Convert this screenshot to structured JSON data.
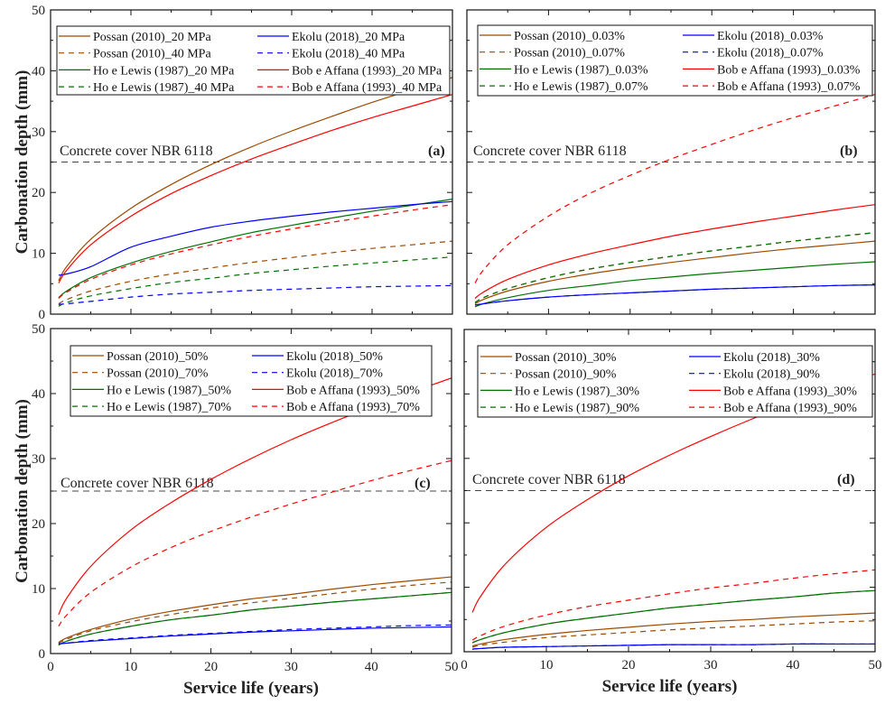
{
  "chart_data": [
    {
      "type": "line",
      "panel_label": "(a)",
      "xlabel": "",
      "ylabel": "Carbonation depth (mm)",
      "xlim": [
        0,
        50
      ],
      "ylim": [
        0,
        50
      ],
      "xticks": [
        0,
        10,
        20,
        30,
        40,
        50
      ],
      "yticks": [
        0,
        10,
        20,
        30,
        40,
        50
      ],
      "reference_line": {
        "y": 25,
        "label": "Concrete cover NBR 6118",
        "color": "#444444",
        "style": "dashed"
      },
      "legend": "top",
      "x": [
        1,
        2,
        5,
        10,
        15,
        20,
        25,
        30,
        35,
        40,
        45,
        50
      ],
      "series": [
        {
          "name": "Possan (2010)_20 MPa",
          "color": "#9c4a00",
          "style": "solid",
          "values": [
            5.5,
            7.8,
            12.3,
            17.4,
            21.3,
            24.6,
            27.5,
            30.1,
            32.5,
            34.8,
            36.9,
            38.9
          ]
        },
        {
          "name": "Possan (2010)_40 MPa",
          "color": "#9c4a00",
          "style": "dashed",
          "values": [
            1.7,
            2.4,
            3.8,
            5.4,
            6.6,
            7.6,
            8.5,
            9.3,
            10.1,
            10.8,
            11.4,
            12.0
          ]
        },
        {
          "name": "Ho e Lewis (1987)_20 MPa",
          "color": "#007000",
          "style": "solid",
          "values": [
            2.7,
            3.8,
            6.0,
            8.4,
            10.3,
            11.9,
            13.4,
            14.6,
            15.8,
            16.9,
            17.9,
            18.9
          ]
        },
        {
          "name": "Ho e Lewis (1987)_40 MPa",
          "color": "#007000",
          "style": "dashed",
          "values": [
            1.3,
            1.9,
            3.0,
            4.2,
            5.2,
            5.9,
            6.7,
            7.3,
            7.9,
            8.4,
            8.9,
            9.4
          ]
        },
        {
          "name": "Ekolu (2018)_20 MPa",
          "color": "#0000ff",
          "style": "solid",
          "values": [
            6.4,
            6.6,
            7.8,
            11.0,
            12.8,
            14.3,
            15.3,
            16.1,
            16.8,
            17.4,
            18.0,
            18.5
          ]
        },
        {
          "name": "Ekolu (2018)_40 MPa",
          "color": "#0000ff",
          "style": "dashed",
          "values": [
            1.6,
            1.7,
            2.1,
            2.8,
            3.3,
            3.6,
            3.9,
            4.1,
            4.3,
            4.5,
            4.6,
            4.7
          ]
        },
        {
          "name": "Bob e Affana (1993)_20 MPa",
          "color": "#ff0000",
          "style": "solid",
          "values": [
            5.1,
            7.2,
            11.4,
            16.1,
            19.8,
            22.8,
            25.5,
            27.9,
            30.2,
            32.3,
            34.2,
            36.1
          ]
        },
        {
          "name": "Bob e Affana (1993)_40 MPa",
          "color": "#ff0000",
          "style": "dashed",
          "values": [
            2.6,
            3.6,
            5.7,
            8.1,
            9.9,
            11.4,
            12.8,
            14.0,
            15.1,
            16.1,
            17.1,
            18.0
          ]
        }
      ]
    },
    {
      "type": "line",
      "panel_label": "(b)",
      "xlabel": "",
      "ylabel": "",
      "xlim": [
        0,
        50
      ],
      "ylim": [
        0,
        50
      ],
      "xticks": [
        0,
        10,
        20,
        30,
        40,
        50
      ],
      "yticks": [
        0,
        10,
        20,
        30,
        40,
        50
      ],
      "reference_line": {
        "y": 25,
        "label": "Concrete cover NBR 6118",
        "color": "#444444",
        "style": "dashed"
      },
      "legend": "top",
      "x": [
        1,
        2,
        5,
        10,
        15,
        20,
        25,
        30,
        35,
        40,
        45,
        50
      ],
      "series": [
        {
          "name": "Possan (2010)_0.03%",
          "color": "#9c4a00",
          "style": "solid",
          "values": [
            1.7,
            2.4,
            3.8,
            5.4,
            6.6,
            7.6,
            8.5,
            9.3,
            10.1,
            10.8,
            11.4,
            12.0
          ]
        },
        {
          "name": "Possan (2010)_0.07%",
          "color": "#9c4a00",
          "style": "dashed",
          "values": [
            1.9,
            2.7,
            4.2,
            6.0,
            7.4,
            8.5,
            9.5,
            10.4,
            11.2,
            12.0,
            12.7,
            13.4
          ]
        },
        {
          "name": "Ho e Lewis (1987)_0.03%",
          "color": "#007000",
          "style": "solid",
          "values": [
            1.2,
            1.7,
            2.7,
            3.9,
            4.7,
            5.5,
            6.1,
            6.7,
            7.2,
            7.7,
            8.2,
            8.6
          ]
        },
        {
          "name": "Ho e Lewis (1987)_0.07%",
          "color": "#007000",
          "style": "dashed",
          "values": [
            1.9,
            2.7,
            4.2,
            6.0,
            7.4,
            8.5,
            9.5,
            10.4,
            11.2,
            12.0,
            12.7,
            13.4
          ]
        },
        {
          "name": "Ekolu (2018)_0.03%",
          "color": "#0000ff",
          "style": "solid",
          "values": [
            1.5,
            1.7,
            2.2,
            2.8,
            3.2,
            3.5,
            3.8,
            4.1,
            4.3,
            4.5,
            4.7,
            4.8
          ]
        },
        {
          "name": "Ekolu (2018)_0.07%",
          "color": "#0000ff",
          "style": "dashed",
          "values": [
            1.5,
            1.7,
            2.2,
            2.8,
            3.2,
            3.5,
            3.8,
            4.1,
            4.3,
            4.5,
            4.7,
            4.8
          ]
        },
        {
          "name": "Bob e Affana (1993)_0.03%",
          "color": "#ff0000",
          "style": "solid",
          "values": [
            2.6,
            3.6,
            5.7,
            8.1,
            9.9,
            11.4,
            12.8,
            14.0,
            15.1,
            16.1,
            17.1,
            18.0
          ]
        },
        {
          "name": "Bob e Affana (1993)_0.07%",
          "color": "#ff0000",
          "style": "dashed",
          "values": [
            5.1,
            7.2,
            11.4,
            16.1,
            19.8,
            22.8,
            25.5,
            27.9,
            30.2,
            32.3,
            34.2,
            36.1
          ]
        }
      ]
    },
    {
      "type": "line",
      "panel_label": "(c)",
      "xlabel": "Service life (years)",
      "ylabel": "Carbonation depth (mm)",
      "xlim": [
        0,
        50
      ],
      "ylim": [
        0,
        50
      ],
      "xticks": [
        0,
        10,
        20,
        30,
        40,
        50
      ],
      "yticks": [
        0,
        10,
        20,
        30,
        40,
        50
      ],
      "reference_line": {
        "y": 25,
        "label": "Concrete cover NBR 6118",
        "color": "#444444",
        "style": "dashed"
      },
      "legend": "top",
      "x": [
        1,
        2,
        5,
        10,
        15,
        20,
        25,
        30,
        35,
        40,
        45,
        50
      ],
      "series": [
        {
          "name": "Possan (2010)_50%",
          "color": "#9c4a00",
          "style": "solid",
          "values": [
            1.7,
            2.4,
            3.7,
            5.3,
            6.5,
            7.5,
            8.4,
            9.1,
            9.9,
            10.6,
            11.2,
            11.8
          ]
        },
        {
          "name": "Possan (2010)_70%",
          "color": "#9c4a00",
          "style": "dashed",
          "values": [
            1.6,
            2.2,
            3.5,
            4.9,
            6.0,
            7.0,
            7.8,
            8.5,
            9.2,
            9.9,
            10.5,
            11.0
          ]
        },
        {
          "name": "Ho e Lewis (1987)_50%",
          "color": "#007000",
          "style": "solid",
          "values": [
            1.3,
            1.9,
            3.0,
            4.2,
            5.2,
            5.9,
            6.7,
            7.3,
            7.9,
            8.4,
            8.9,
            9.4
          ]
        },
        {
          "name": "Ho e Lewis (1987)_70%",
          "color": "#007000",
          "style": "dashed",
          "values": [
            1.3,
            1.9,
            3.0,
            4.2,
            5.2,
            5.9,
            6.7,
            7.3,
            7.9,
            8.4,
            8.9,
            9.4
          ]
        },
        {
          "name": "Ekolu (2018)_50%",
          "color": "#0000ff",
          "style": "solid",
          "values": [
            1.5,
            1.6,
            1.9,
            2.3,
            2.7,
            3.0,
            3.3,
            3.5,
            3.7,
            3.9,
            4.0,
            4.1
          ]
        },
        {
          "name": "Ekolu (2018)_70%",
          "color": "#0000ff",
          "style": "dashed",
          "values": [
            1.5,
            1.6,
            2.0,
            2.4,
            2.8,
            3.1,
            3.4,
            3.7,
            3.9,
            4.1,
            4.3,
            4.4
          ]
        },
        {
          "name": "Bob e Affana (1993)_50%",
          "color": "#ff0000",
          "style": "solid",
          "values": [
            6.0,
            8.5,
            13.4,
            19.0,
            23.2,
            26.8,
            30.0,
            32.9,
            35.5,
            37.9,
            40.2,
            42.4
          ]
        },
        {
          "name": "Bob e Affana (1993)_70%",
          "color": "#ff0000",
          "style": "dashed",
          "values": [
            4.2,
            5.9,
            9.4,
            13.3,
            16.3,
            18.8,
            21.0,
            23.0,
            24.8,
            26.6,
            28.2,
            29.7
          ]
        }
      ]
    },
    {
      "type": "line",
      "panel_label": "(d)",
      "xlabel": "Service life (years)",
      "ylabel": "",
      "xlim": [
        0,
        50
      ],
      "ylim": [
        0,
        50
      ],
      "xticks": [
        0,
        10,
        20,
        30,
        40,
        50
      ],
      "yticks": [
        0,
        10,
        20,
        30,
        40,
        50
      ],
      "reference_line": {
        "y": 25,
        "label": "Concrete cover NBR 6118",
        "color": "#444444",
        "style": "dashed"
      },
      "legend": "top",
      "x": [
        1,
        2,
        5,
        10,
        15,
        20,
        25,
        30,
        35,
        40,
        45,
        50
      ],
      "series": [
        {
          "name": "Possan (2010)_30%",
          "color": "#9c4a00",
          "style": "solid",
          "values": [
            0.9,
            1.2,
            1.9,
            2.7,
            3.3,
            3.8,
            4.3,
            4.7,
            5.0,
            5.4,
            5.7,
            6.0
          ]
        },
        {
          "name": "Possan (2010)_90%",
          "color": "#9c4a00",
          "style": "dashed",
          "values": [
            0.7,
            1.0,
            1.5,
            2.2,
            2.6,
            3.0,
            3.4,
            3.7,
            4.0,
            4.3,
            4.6,
            4.8
          ]
        },
        {
          "name": "Ho e Lewis (1987)_30%",
          "color": "#007000",
          "style": "solid",
          "values": [
            1.4,
            1.9,
            3.0,
            4.3,
            5.2,
            6.0,
            6.8,
            7.4,
            8.0,
            8.5,
            9.1,
            9.5
          ]
        },
        {
          "name": "Ho e Lewis (1987)_90%",
          "color": "#007000",
          "style": "dashed",
          "values": [
            1.4,
            1.9,
            3.0,
            4.3,
            5.2,
            6.0,
            6.8,
            7.4,
            8.0,
            8.5,
            9.1,
            9.5
          ]
        },
        {
          "name": "Ekolu (2018)_30%",
          "color": "#0000ff",
          "style": "solid",
          "values": [
            0.4,
            0.5,
            0.7,
            0.8,
            0.9,
            1.0,
            1.1,
            1.1,
            1.1,
            1.2,
            1.2,
            1.2
          ]
        },
        {
          "name": "Ekolu (2018)_90%",
          "color": "#0000ff",
          "style": "dashed",
          "values": [
            0.4,
            0.5,
            0.7,
            0.8,
            0.9,
            1.0,
            1.1,
            1.1,
            1.1,
            1.2,
            1.2,
            1.2
          ]
        },
        {
          "name": "Bob e Affana (1993)_30%",
          "color": "#ff0000",
          "style": "solid",
          "values": [
            6.1,
            8.6,
            13.6,
            19.3,
            23.6,
            27.3,
            30.5,
            33.4,
            36.1,
            38.6,
            40.9,
            43.1
          ]
        },
        {
          "name": "Bob e Affana (1993)_90%",
          "color": "#ff0000",
          "style": "dashed",
          "values": [
            1.8,
            2.5,
            4.0,
            5.7,
            7.0,
            8.0,
            9.0,
            9.9,
            10.6,
            11.4,
            12.1,
            12.7
          ]
        }
      ]
    }
  ]
}
